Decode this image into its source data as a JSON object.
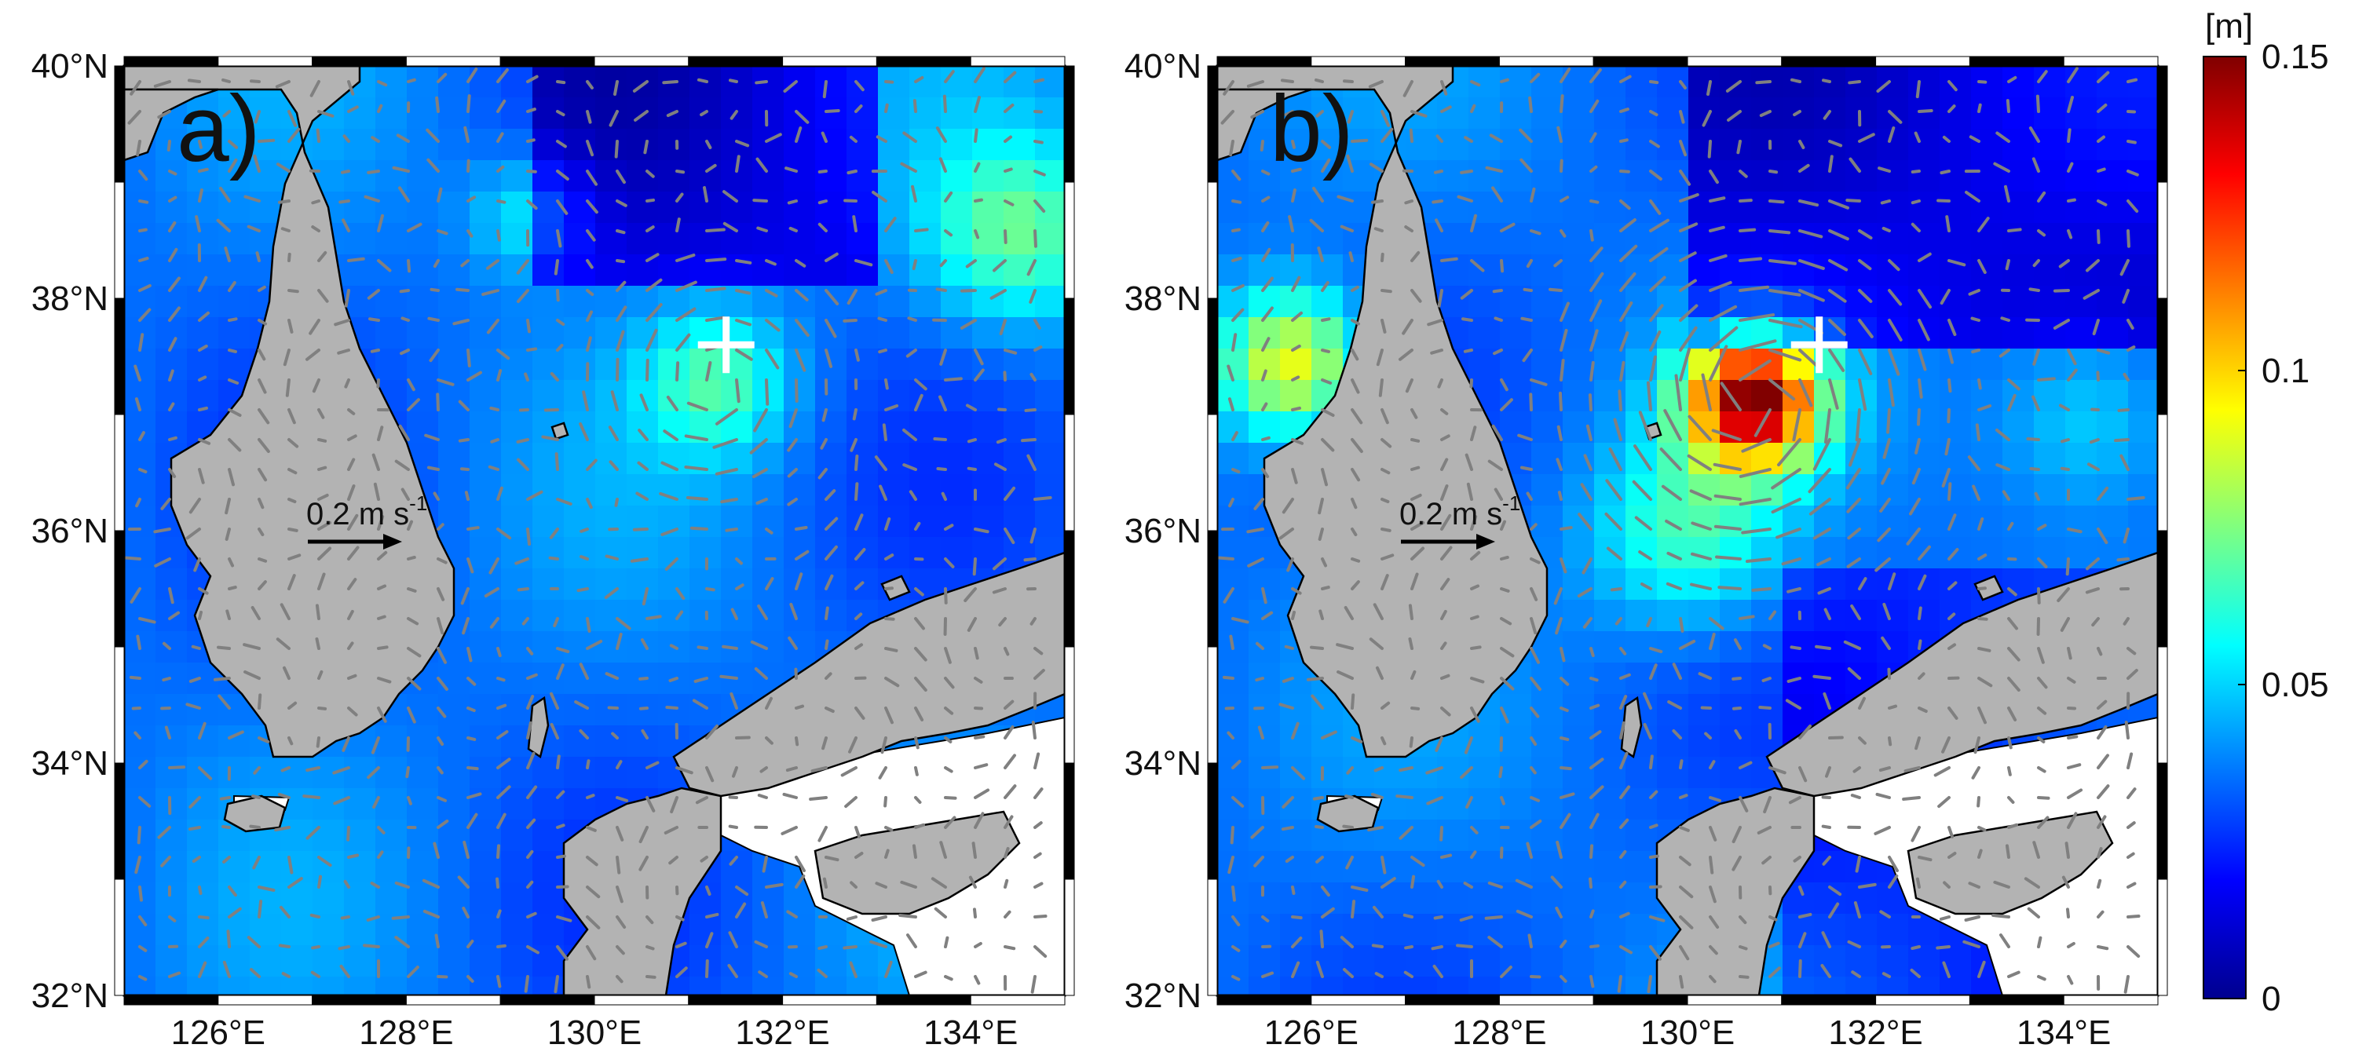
{
  "panels": [
    {
      "label": "a)",
      "scale_arrow_label": "0.2 m s",
      "scale_arrow_exp": "-1",
      "eddy_center": {
        "lon": 131.4,
        "lat": 37.6
      }
    },
    {
      "label": "b)",
      "scale_arrow_label": "0.2 m s",
      "scale_arrow_exp": "-1",
      "eddy_center": {
        "lon": 131.4,
        "lat": 37.6
      }
    }
  ],
  "axes": {
    "lon_range": [
      125,
      135
    ],
    "lat_range": [
      32,
      40
    ],
    "lon_ticks": [
      "126°E",
      "128°E",
      "130°E",
      "132°E",
      "134°E"
    ],
    "lat_ticks": [
      "32°N",
      "34°N",
      "36°N",
      "38°N",
      "40°N"
    ]
  },
  "colorbar": {
    "unit": "[m]",
    "range": [
      0,
      0.15
    ],
    "ticks": [
      "0",
      "0.05",
      "0.1",
      "0.15"
    ],
    "colormap": "jet"
  },
  "colors": {
    "land": "#b3b3b3",
    "coast": "#000000",
    "arrow": "#808080",
    "marker": "#ffffff"
  }
}
